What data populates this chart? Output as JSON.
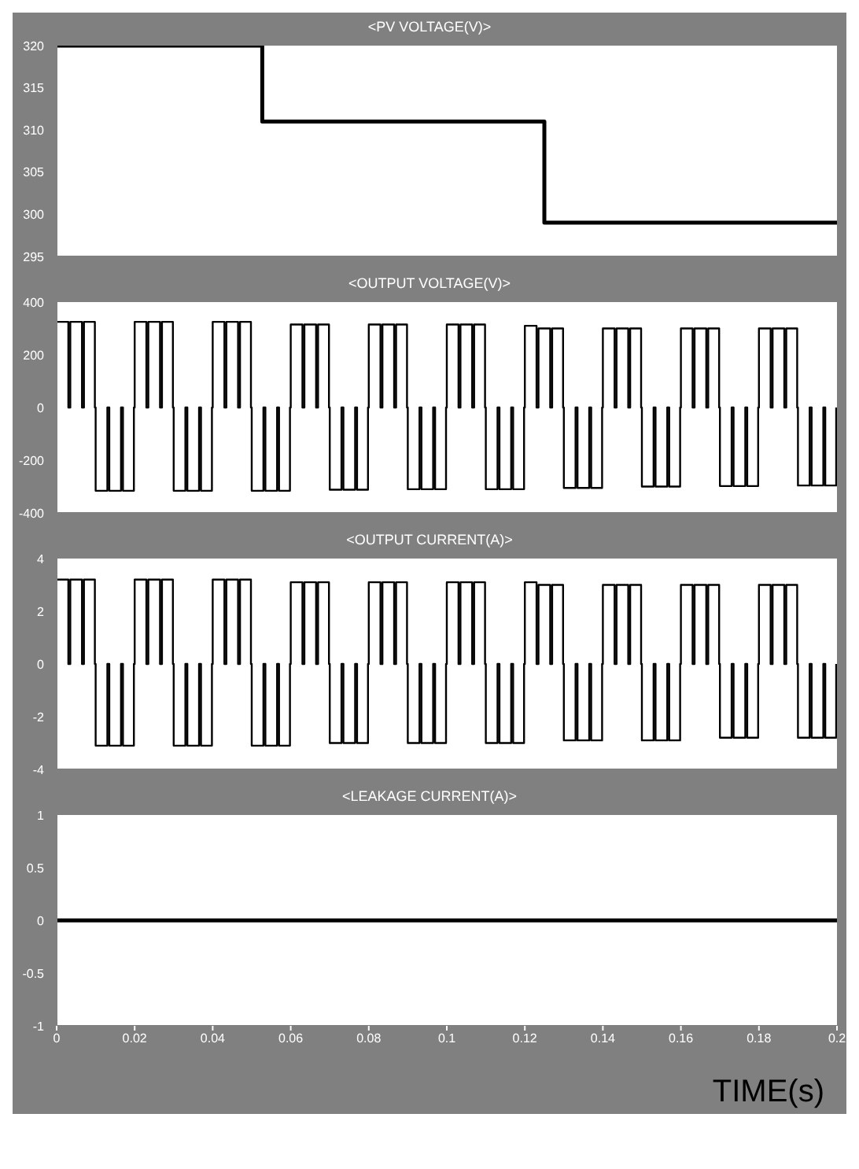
{
  "chart_data": [
    {
      "type": "step",
      "title": "<PV VOLTAGE(V)>",
      "x": [
        0,
        0.0527,
        0.125,
        0.2
      ],
      "series": [
        {
          "color": "#000000",
          "values": [
            320,
            311,
            299,
            299
          ]
        }
      ],
      "xlim": [
        0,
        0.2
      ],
      "xticks": [
        0,
        0.02,
        0.04,
        0.06,
        0.08,
        0.1,
        0.12,
        0.14,
        0.16,
        0.18,
        0.2
      ],
      "ylim": [
        295,
        320
      ],
      "yticks": [
        295,
        300,
        305,
        310,
        315,
        320
      ],
      "tick_labels": "y"
    },
    {
      "type": "step",
      "title": "<OUTPUT VOLTAGE(V)>",
      "x": [
        0,
        0.003,
        0.0035,
        0.0065,
        0.007,
        0.0098,
        0.01,
        0.013,
        0.0135,
        0.0165,
        0.017,
        0.0198,
        0.02,
        0.023,
        0.0235,
        0.0265,
        0.027,
        0.0298,
        0.03,
        0.033,
        0.0335,
        0.0365,
        0.037,
        0.0398,
        0.04,
        0.043,
        0.0435,
        0.0465,
        0.047,
        0.0498,
        0.05,
        0.053,
        0.0535,
        0.0565,
        0.057,
        0.0598,
        0.06,
        0.063,
        0.0635,
        0.0665,
        0.067,
        0.0698,
        0.07,
        0.073,
        0.0735,
        0.0765,
        0.077,
        0.0798,
        0.08,
        0.083,
        0.0835,
        0.0865,
        0.087,
        0.0898,
        0.09,
        0.093,
        0.0935,
        0.0965,
        0.097,
        0.0998,
        0.1,
        0.103,
        0.1035,
        0.1065,
        0.107,
        0.1098,
        0.11,
        0.113,
        0.1135,
        0.1165,
        0.117,
        0.1198,
        0.12,
        0.123,
        0.1235,
        0.1265,
        0.127,
        0.1298,
        0.13,
        0.133,
        0.1335,
        0.1365,
        0.137,
        0.1398,
        0.14,
        0.143,
        0.1435,
        0.1465,
        0.147,
        0.1498,
        0.15,
        0.153,
        0.1535,
        0.1565,
        0.157,
        0.1598,
        0.16,
        0.163,
        0.1635,
        0.1665,
        0.167,
        0.1698,
        0.17,
        0.173,
        0.1735,
        0.1765,
        0.177,
        0.1798,
        0.18,
        0.183,
        0.1835,
        0.1865,
        0.187,
        0.1898,
        0.19,
        0.193,
        0.1935,
        0.1965,
        0.197,
        0.1998
      ],
      "series": [
        {
          "color": "#000000",
          "values": [
            325,
            0,
            325,
            0,
            325,
            0,
            -316,
            0,
            -316,
            0,
            -316,
            0,
            325,
            0,
            325,
            0,
            325,
            0,
            -316,
            0,
            -316,
            0,
            -316,
            0,
            325,
            0,
            325,
            0,
            325,
            0,
            -316,
            0,
            -316,
            0,
            -316,
            0,
            315,
            0,
            315,
            0,
            315,
            0,
            -312,
            0,
            -312,
            0,
            -312,
            0,
            315,
            0,
            315,
            0,
            315,
            0,
            -310,
            0,
            -310,
            0,
            -310,
            0,
            315,
            0,
            315,
            0,
            315,
            0,
            -310,
            0,
            -310,
            0,
            -310,
            0,
            310,
            0,
            300,
            0,
            300,
            0,
            -305,
            0,
            -305,
            0,
            -305,
            0,
            300,
            0,
            300,
            0,
            300,
            0,
            -300,
            0,
            -300,
            0,
            -300,
            0,
            300,
            0,
            300,
            0,
            300,
            0,
            -298,
            0,
            -298,
            0,
            -298,
            0,
            300,
            0,
            300,
            0,
            300,
            0,
            -296,
            0,
            -296,
            0,
            -296,
            0
          ]
        }
      ],
      "xlim": [
        0,
        0.2
      ],
      "xticks": [
        0,
        0.02,
        0.04,
        0.06,
        0.08,
        0.1,
        0.12,
        0.14,
        0.16,
        0.18,
        0.2
      ],
      "ylim": [
        -400,
        400
      ],
      "yticks": [
        -400,
        -200,
        0,
        200,
        400
      ],
      "tick_labels": "y"
    },
    {
      "type": "step",
      "title": "<OUTPUT CURRENT(A)>",
      "x": [
        0,
        0.003,
        0.0035,
        0.0065,
        0.007,
        0.0098,
        0.01,
        0.013,
        0.0135,
        0.0165,
        0.017,
        0.0198,
        0.02,
        0.023,
        0.0235,
        0.0265,
        0.027,
        0.0298,
        0.03,
        0.033,
        0.0335,
        0.0365,
        0.037,
        0.0398,
        0.04,
        0.043,
        0.0435,
        0.0465,
        0.047,
        0.0498,
        0.05,
        0.053,
        0.0535,
        0.0565,
        0.057,
        0.0598,
        0.06,
        0.063,
        0.0635,
        0.0665,
        0.067,
        0.0698,
        0.07,
        0.073,
        0.0735,
        0.0765,
        0.077,
        0.0798,
        0.08,
        0.083,
        0.0835,
        0.0865,
        0.087,
        0.0898,
        0.09,
        0.093,
        0.0935,
        0.0965,
        0.097,
        0.0998,
        0.1,
        0.103,
        0.1035,
        0.1065,
        0.107,
        0.1098,
        0.11,
        0.113,
        0.1135,
        0.1165,
        0.117,
        0.1198,
        0.12,
        0.123,
        0.1235,
        0.1265,
        0.127,
        0.1298,
        0.13,
        0.133,
        0.1335,
        0.1365,
        0.137,
        0.1398,
        0.14,
        0.143,
        0.1435,
        0.1465,
        0.147,
        0.1498,
        0.15,
        0.153,
        0.1535,
        0.1565,
        0.157,
        0.1598,
        0.16,
        0.163,
        0.1635,
        0.1665,
        0.167,
        0.1698,
        0.17,
        0.173,
        0.1735,
        0.1765,
        0.177,
        0.1798,
        0.18,
        0.183,
        0.1835,
        0.1865,
        0.187,
        0.1898,
        0.19,
        0.193,
        0.1935,
        0.1965,
        0.197,
        0.1998
      ],
      "series": [
        {
          "color": "#000000",
          "values": [
            3.2,
            0,
            3.2,
            0,
            3.2,
            0,
            -3.1,
            0,
            -3.1,
            0,
            -3.1,
            0,
            3.2,
            0,
            3.2,
            0,
            3.2,
            0,
            -3.1,
            0,
            -3.1,
            0,
            -3.1,
            0,
            3.2,
            0,
            3.2,
            0,
            3.2,
            0,
            -3.1,
            0,
            -3.1,
            0,
            -3.1,
            0,
            3.1,
            0,
            3.1,
            0,
            3.1,
            0,
            -3.0,
            0,
            -3.0,
            0,
            -3.0,
            0,
            3.1,
            0,
            3.1,
            0,
            3.1,
            0,
            -3.0,
            0,
            -3.0,
            0,
            -3.0,
            0,
            3.1,
            0,
            3.1,
            0,
            3.1,
            0,
            -3.0,
            0,
            -3.0,
            0,
            -3.0,
            0,
            3.1,
            0,
            3.0,
            0,
            3.0,
            0,
            -2.9,
            0,
            -2.9,
            0,
            -2.9,
            0,
            3.0,
            0,
            3.0,
            0,
            3.0,
            0,
            -2.9,
            0,
            -2.9,
            0,
            -2.9,
            0,
            3.0,
            0,
            3.0,
            0,
            3.0,
            0,
            -2.8,
            0,
            -2.8,
            0,
            -2.8,
            0,
            3.0,
            0,
            3.0,
            0,
            3.0,
            0,
            -2.8,
            0,
            -2.8,
            0,
            -2.8,
            0
          ]
        }
      ],
      "xlim": [
        0,
        0.2
      ],
      "xticks": [
        0,
        0.02,
        0.04,
        0.06,
        0.08,
        0.1,
        0.12,
        0.14,
        0.16,
        0.18,
        0.2
      ],
      "ylim": [
        -4,
        4
      ],
      "yticks": [
        -4,
        -2,
        0,
        2,
        4
      ],
      "tick_labels": "y"
    },
    {
      "type": "line",
      "title": "<LEAKAGE CURRENT(A)>",
      "xlabel": "TIME(s)",
      "x": [
        0,
        0.2
      ],
      "series": [
        {
          "color": "#000000",
          "values": [
            0,
            0
          ]
        }
      ],
      "xlim": [
        0,
        0.2
      ],
      "xticks": [
        0,
        0.02,
        0.04,
        0.06,
        0.08,
        0.1,
        0.12,
        0.14,
        0.16,
        0.18,
        0.2
      ],
      "ylim": [
        -1,
        1
      ],
      "yticks": [
        -1,
        -0.5,
        0,
        0.5,
        1
      ]
    }
  ]
}
